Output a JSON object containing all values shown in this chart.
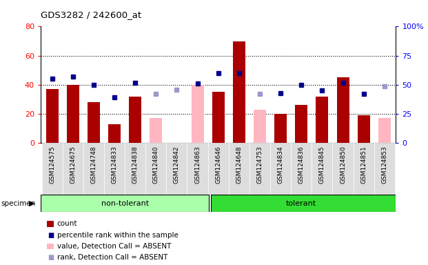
{
  "title": "GDS3282 / 242600_at",
  "samples": [
    "GSM124575",
    "GSM124675",
    "GSM124748",
    "GSM124833",
    "GSM124838",
    "GSM124840",
    "GSM124842",
    "GSM124863",
    "GSM124646",
    "GSM124648",
    "GSM124753",
    "GSM124834",
    "GSM124836",
    "GSM124845",
    "GSM124850",
    "GSM124851",
    "GSM124853"
  ],
  "n_nontolerant": 8,
  "n_tolerant": 9,
  "count": [
    37,
    40,
    28,
    13,
    32,
    null,
    null,
    null,
    35,
    70,
    null,
    20,
    26,
    32,
    45,
    19,
    null
  ],
  "percentile_rank": [
    55,
    57,
    50,
    39,
    52,
    null,
    null,
    51,
    60,
    60,
    null,
    43,
    50,
    45,
    52,
    42,
    null
  ],
  "value_absent": [
    null,
    null,
    null,
    null,
    null,
    17,
    null,
    40,
    null,
    null,
    23,
    null,
    null,
    null,
    null,
    null,
    17
  ],
  "rank_absent": [
    null,
    null,
    null,
    null,
    null,
    42,
    46,
    null,
    null,
    null,
    42,
    null,
    null,
    null,
    null,
    null,
    49
  ],
  "ylim_left": [
    0,
    80
  ],
  "ylim_right": [
    0,
    100
  ],
  "yticks_left": [
    0,
    20,
    40,
    60,
    80
  ],
  "yticks_right": [
    0,
    25,
    50,
    75,
    100
  ],
  "ytick_labels_right": [
    "0",
    "25",
    "50",
    "75",
    "100%"
  ],
  "bar_color_count": "#AA0000",
  "bar_color_absent": "#FFB6C1",
  "dot_color_rank": "#00008B",
  "dot_color_rank_absent": "#9999CC",
  "color_nontolerant": "#AAFFAA",
  "color_tolerant": "#33DD33",
  "bg_color": "#FFFFFF",
  "tick_bg": "#DDDDDD"
}
